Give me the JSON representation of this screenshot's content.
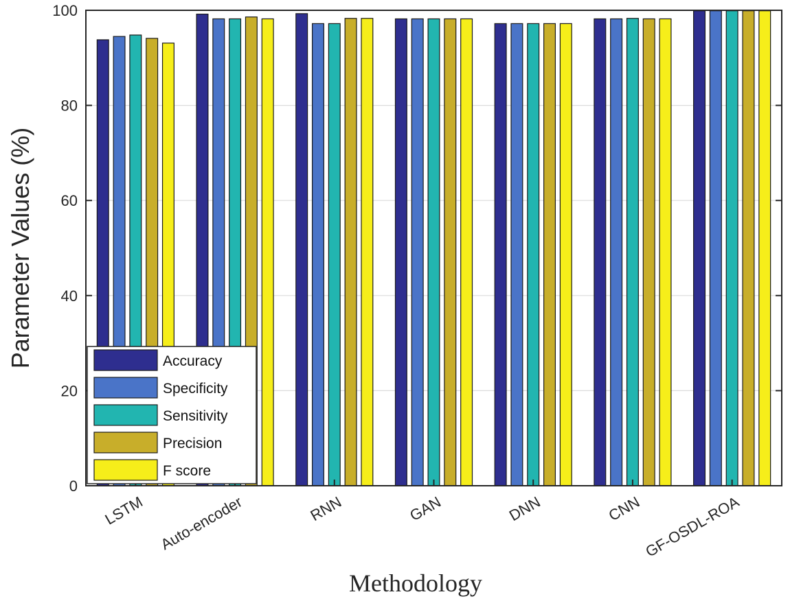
{
  "chart_data": {
    "type": "bar",
    "title": "",
    "xlabel": "Methodology",
    "ylabel": "Parameter Values (%)",
    "ylim": [
      0,
      100
    ],
    "yticks": [
      0,
      20,
      40,
      60,
      80,
      100
    ],
    "grid": true,
    "legend_position": "bottom-left",
    "categories": [
      "LSTM",
      "Auto-encoder",
      "RNN",
      "GAN",
      "DNN",
      "CNN",
      "GF-OSDL-ROA"
    ],
    "series": [
      {
        "name": "Accuracy",
        "color": "#2e2e8f",
        "values": [
          93.8,
          99.2,
          99.3,
          98.2,
          97.2,
          98.2,
          99.9
        ]
      },
      {
        "name": "Specificity",
        "color": "#4a74c8",
        "values": [
          94.5,
          98.2,
          97.2,
          98.2,
          97.2,
          98.2,
          99.9
        ]
      },
      {
        "name": "Sensitivity",
        "color": "#22b5b0",
        "values": [
          94.8,
          98.2,
          97.2,
          98.2,
          97.2,
          98.3,
          99.9
        ]
      },
      {
        "name": "Precision",
        "color": "#c8ae2a",
        "values": [
          94.1,
          98.6,
          98.3,
          98.2,
          97.2,
          98.2,
          99.9
        ]
      },
      {
        "name": "F score",
        "color": "#f6ee1a",
        "values": [
          93.1,
          98.2,
          98.3,
          98.2,
          97.2,
          98.2,
          99.9
        ]
      }
    ]
  }
}
